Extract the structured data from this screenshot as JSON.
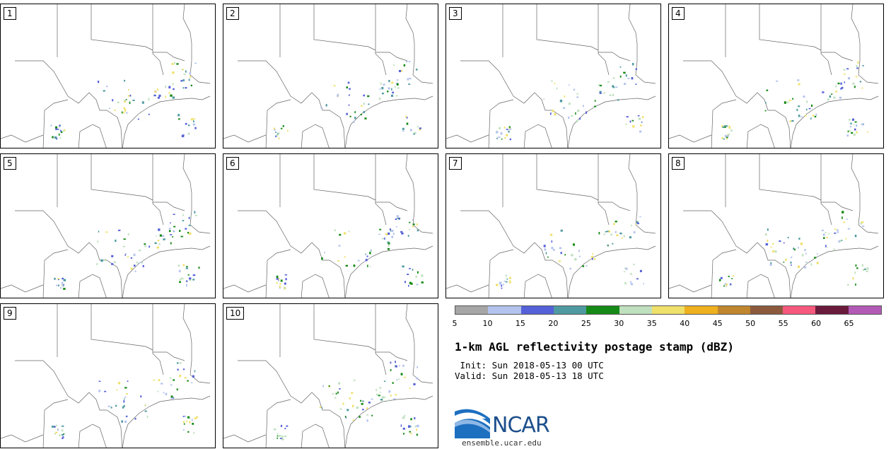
{
  "panels": [
    {
      "label": "1"
    },
    {
      "label": "2"
    },
    {
      "label": "3"
    },
    {
      "label": "4"
    },
    {
      "label": "5"
    },
    {
      "label": "6"
    },
    {
      "label": "7"
    },
    {
      "label": "8"
    },
    {
      "label": "9"
    },
    {
      "label": "10"
    }
  ],
  "colorbar": {
    "colors": [
      "#a6a6a6",
      "#b4c3ee",
      "#5561d8",
      "#4f9aa0",
      "#168a16",
      "#bfe0be",
      "#efe06a",
      "#eeb01f",
      "#c0862e",
      "#8b5a3c",
      "#f5597d",
      "#6a1b3c",
      "#b25ab5"
    ],
    "ticks": [
      "5",
      "10",
      "15",
      "20",
      "25",
      "30",
      "35",
      "40",
      "45",
      "50",
      "55",
      "60",
      "65"
    ]
  },
  "title": "1-km AGL reflectivity postage stamp (dBZ)",
  "init": " Init: Sun 2018-05-13 00 UTC",
  "valid": "Valid: Sun 2018-05-13 18 UTC",
  "logo": {
    "text": "NCAR",
    "url": "ensemble.ucar.edu"
  }
}
